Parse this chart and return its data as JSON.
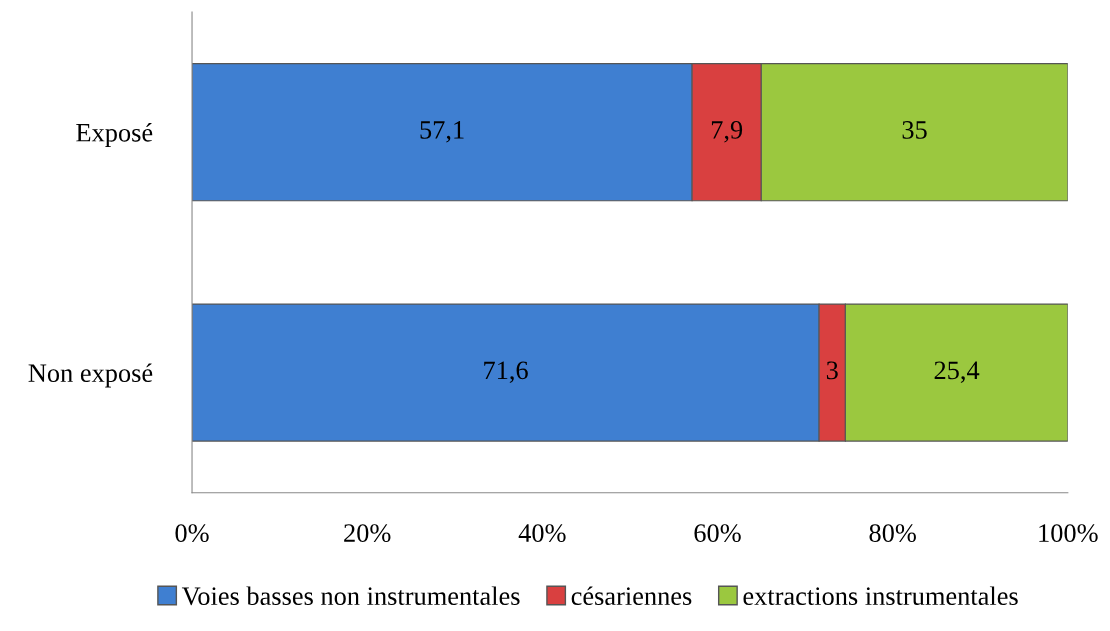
{
  "chart_data": {
    "type": "bar",
    "orientation": "horizontal",
    "stacked": true,
    "categories": [
      "Exposé",
      "Non exposé"
    ],
    "series": [
      {
        "name": "Voies basses non instrumentales",
        "color": "#3f7fd1",
        "values": [
          57.1,
          71.6
        ],
        "value_labels": [
          "57,1",
          "71,6"
        ]
      },
      {
        "name": "césariennes",
        "color": "#d94040",
        "values": [
          7.9,
          3
        ],
        "value_labels": [
          "7,9",
          "3"
        ]
      },
      {
        "name": "extractions instrumentales",
        "color": "#9bc83f",
        "values": [
          35,
          25.4
        ],
        "value_labels": [
          "35",
          "25,4"
        ]
      }
    ],
    "xlim": [
      0,
      100
    ],
    "xticks": [
      {
        "value": 0,
        "label": "0%"
      },
      {
        "value": 20,
        "label": "20%"
      },
      {
        "value": 40,
        "label": "40%"
      },
      {
        "value": 60,
        "label": "60%"
      },
      {
        "value": 80,
        "label": "80%"
      },
      {
        "value": 100,
        "label": "100%"
      }
    ],
    "grid": false,
    "legend": "bottom"
  }
}
